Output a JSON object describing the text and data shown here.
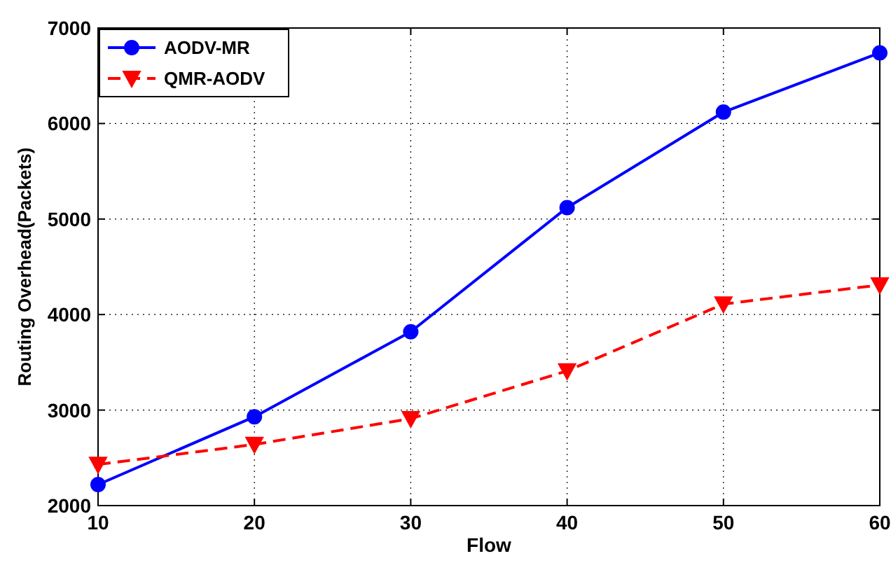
{
  "chart_data": {
    "type": "line",
    "xlabel": "Flow",
    "ylabel": "Routing Overhead(Packets)",
    "x": [
      10,
      20,
      30,
      40,
      50,
      60
    ],
    "series": [
      {
        "name": "AODV-MR",
        "color": "#0000ff",
        "values": [
          2220,
          2930,
          3820,
          5120,
          6120,
          6740
        ],
        "marker": "circle",
        "line_style": "solid"
      },
      {
        "name": "QMR-AODV",
        "color": "#ff0000",
        "values": [
          2430,
          2640,
          2910,
          3410,
          4110,
          4310
        ],
        "marker": "triangle",
        "line_style": "dashed"
      }
    ],
    "xlim": [
      10,
      60
    ],
    "xticks": [
      10,
      20,
      30,
      40,
      50,
      60
    ],
    "ylim": [
      2000,
      7000
    ],
    "yticks": [
      2000,
      3000,
      4000,
      5000,
      6000,
      7000
    ],
    "grid": true,
    "legend": "top left"
  }
}
